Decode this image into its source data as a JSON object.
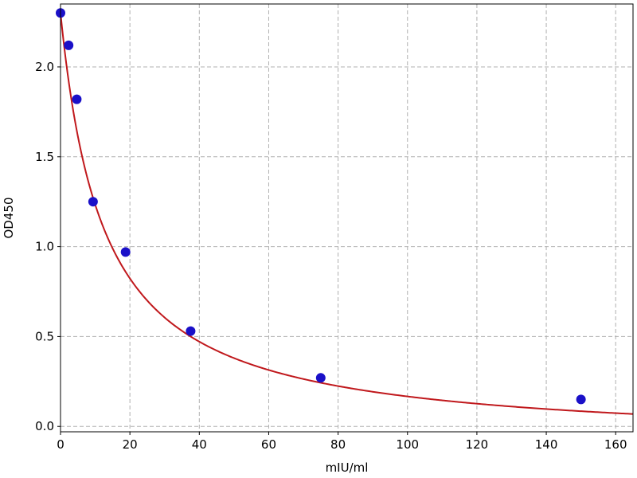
{
  "chart_data": {
    "type": "scatter",
    "title": "",
    "xlabel": "mIU/ml",
    "ylabel": "OD450",
    "xlim": [
      0,
      165
    ],
    "ylim": [
      -0.03,
      2.35
    ],
    "xticks": [
      0,
      20,
      40,
      60,
      80,
      100,
      120,
      140,
      160
    ],
    "yticks": [
      0.0,
      0.5,
      1.0,
      1.5,
      2.0
    ],
    "xtick_labels": [
      "0",
      "20",
      "40",
      "60",
      "80",
      "100",
      "120",
      "140",
      "160"
    ],
    "ytick_labels": [
      "0.0",
      "0.5",
      "1.0",
      "1.5",
      "2.0"
    ],
    "grid": true,
    "points": {
      "x": [
        0,
        2.34,
        4.69,
        9.38,
        18.75,
        37.5,
        75,
        150
      ],
      "y": [
        2.3,
        2.12,
        1.82,
        1.25,
        0.97,
        0.53,
        0.27,
        0.15
      ],
      "color": "#1a10c8"
    },
    "fit_curve": {
      "type": "4PL",
      "a": 2.3,
      "b": 1.0,
      "c": 12.5,
      "d": -0.1,
      "color": "#c0181c"
    }
  }
}
